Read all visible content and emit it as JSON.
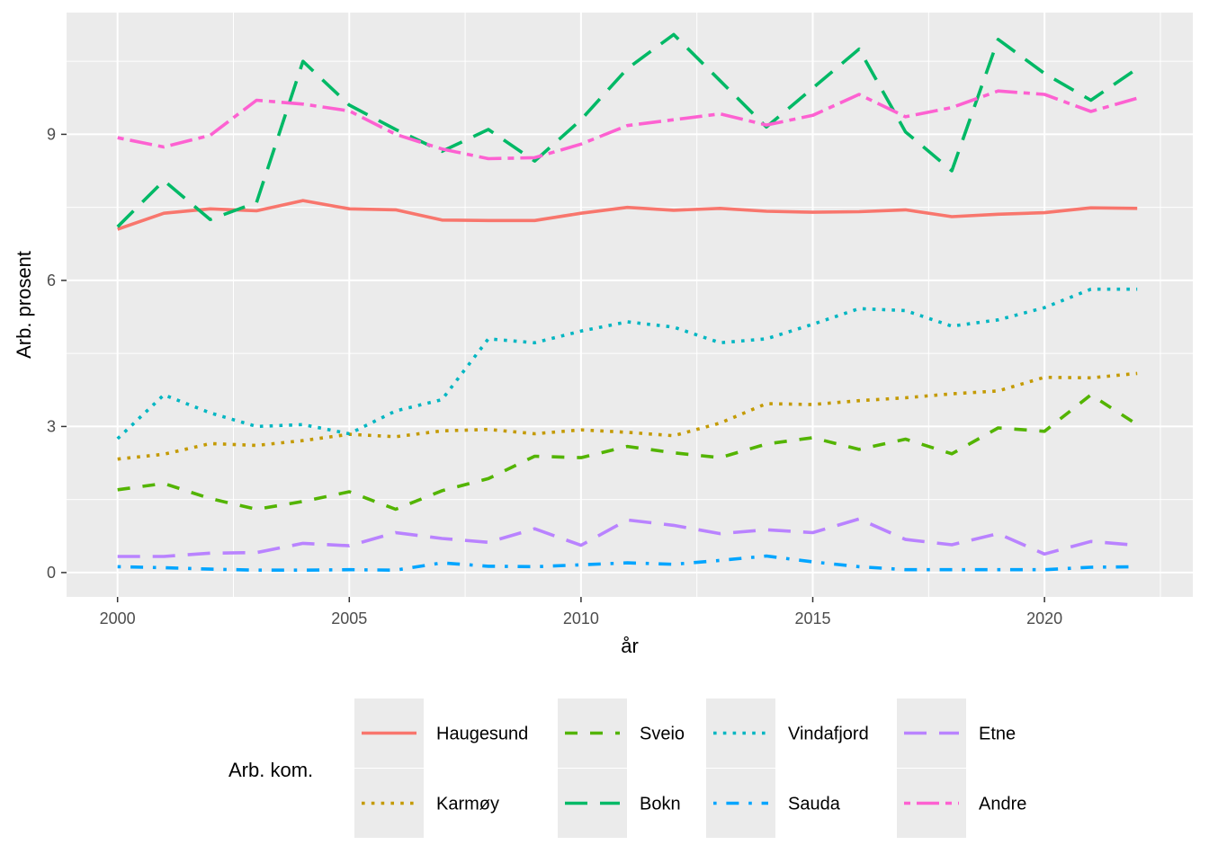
{
  "chart_data": {
    "type": "line",
    "xlabel": "år",
    "ylabel": "Arb. prosent",
    "legend_title": "Arb. kom.",
    "legend_position": "bottom",
    "grid": true,
    "xlim": [
      1998.9,
      2023.2
    ],
    "ylim": [
      -0.5,
      11.5
    ],
    "x_ticks": [
      2000,
      2005,
      2010,
      2015,
      2020
    ],
    "x_tick_labels": [
      "2000",
      "2005",
      "2010",
      "2015",
      "2020"
    ],
    "y_ticks": [
      0,
      3,
      6,
      9
    ],
    "y_tick_labels": [
      "0",
      "3",
      "6",
      "9"
    ],
    "x": [
      2000,
      2001,
      2002,
      2003,
      2004,
      2005,
      2006,
      2007,
      2008,
      2009,
      2010,
      2011,
      2012,
      2013,
      2014,
      2015,
      2016,
      2017,
      2018,
      2019,
      2020,
      2021,
      2022
    ],
    "series": [
      {
        "name": "Haugesund",
        "color": "#F8766D",
        "dash": "solid",
        "values": [
          7.05,
          7.38,
          7.47,
          7.43,
          7.64,
          7.47,
          7.45,
          7.24,
          7.23,
          7.23,
          7.38,
          7.5,
          7.44,
          7.48,
          7.42,
          7.4,
          7.41,
          7.45,
          7.31,
          7.36,
          7.39,
          7.49,
          7.48
        ]
      },
      {
        "name": "Karmøy",
        "color": "#C49A00",
        "dash": "dotted",
        "values": [
          2.33,
          2.43,
          2.65,
          2.61,
          2.71,
          2.84,
          2.79,
          2.91,
          2.94,
          2.85,
          2.93,
          2.88,
          2.81,
          3.07,
          3.47,
          3.45,
          3.53,
          3.59,
          3.67,
          3.73,
          4.01,
          4.0,
          4.09
        ]
      },
      {
        "name": "Sveio",
        "color": "#53B400",
        "dash": "dashed",
        "values": [
          1.7,
          1.83,
          1.52,
          1.3,
          1.46,
          1.66,
          1.3,
          1.68,
          1.93,
          2.39,
          2.36,
          2.59,
          2.46,
          2.36,
          2.64,
          2.77,
          2.53,
          2.74,
          2.44,
          2.97,
          2.9,
          3.65,
          3.04
        ]
      },
      {
        "name": "Bokn",
        "color": "#00B966",
        "dash": "longdash",
        "values": [
          7.1,
          8.05,
          7.25,
          7.6,
          10.5,
          9.6,
          9.1,
          8.65,
          9.1,
          8.45,
          9.3,
          10.35,
          11.05,
          10.1,
          9.15,
          9.95,
          10.75,
          9.05,
          8.25,
          10.95,
          10.25,
          9.7,
          10.35
        ]
      },
      {
        "name": "Vindafjord",
        "color": "#00B6C2",
        "dash": "dotted",
        "values": [
          2.75,
          3.65,
          3.28,
          3.0,
          3.04,
          2.85,
          3.32,
          3.55,
          4.8,
          4.72,
          4.96,
          5.15,
          5.04,
          4.72,
          4.8,
          5.1,
          5.42,
          5.38,
          5.06,
          5.19,
          5.44,
          5.82,
          5.82
        ]
      },
      {
        "name": "Sauda",
        "color": "#00A5FF",
        "dash": "dotdash",
        "values": [
          0.12,
          0.1,
          0.07,
          0.05,
          0.05,
          0.06,
          0.05,
          0.2,
          0.13,
          0.12,
          0.16,
          0.2,
          0.17,
          0.25,
          0.34,
          0.22,
          0.12,
          0.06,
          0.06,
          0.06,
          0.06,
          0.11,
          0.12
        ]
      },
      {
        "name": "Etne",
        "color": "#B983FF",
        "dash": "longdash",
        "values": [
          0.33,
          0.33,
          0.4,
          0.41,
          0.6,
          0.55,
          0.82,
          0.7,
          0.62,
          0.9,
          0.56,
          1.08,
          0.97,
          0.8,
          0.88,
          0.82,
          1.1,
          0.68,
          0.57,
          0.8,
          0.38,
          0.64,
          0.56
        ]
      },
      {
        "name": "Andre",
        "color": "#FD61D1",
        "dash": "twodash",
        "values": [
          8.93,
          8.74,
          8.98,
          9.7,
          9.62,
          9.48,
          9.0,
          8.7,
          8.5,
          8.52,
          8.8,
          9.18,
          9.3,
          9.42,
          9.19,
          9.39,
          9.82,
          9.36,
          9.55,
          9.89,
          9.82,
          9.47,
          9.74
        ]
      }
    ],
    "legend_layout": [
      [
        "Haugesund",
        "Karmøy"
      ],
      [
        "Sveio",
        "Bokn"
      ],
      [
        "Vindafjord",
        "Sauda"
      ],
      [
        "Etne",
        "Andre"
      ]
    ]
  }
}
